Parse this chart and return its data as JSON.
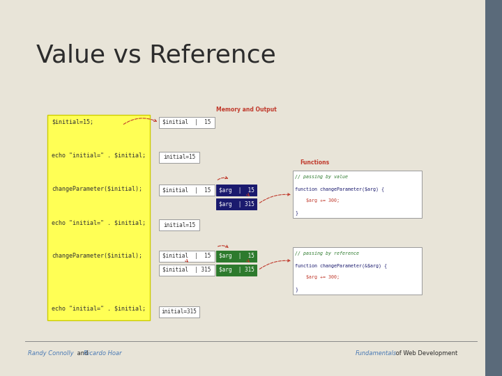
{
  "title": "Value vs Reference",
  "bg_color": "#e8e4d8",
  "title_color": "#2c2c2c",
  "footer_left": "Randy Connolly",
  "footer_and": " and ",
  "footer_right": "Ricardo Hoar",
  "footer_right2": "Fundamentals",
  "footer_rest": " of Web Development",
  "footer_color_blue": "#4a7ab5",
  "footer_color_dark": "#2c2c2c",
  "yellow_color": "#ffff55",
  "arrow_color": "#c0392b",
  "dark_blue": "#1a1a6e",
  "green": "#2d7a2d",
  "white": "#ffffff",
  "border_color": "#999999",
  "label_color": "#c0392b",
  "code_color": "#333333"
}
